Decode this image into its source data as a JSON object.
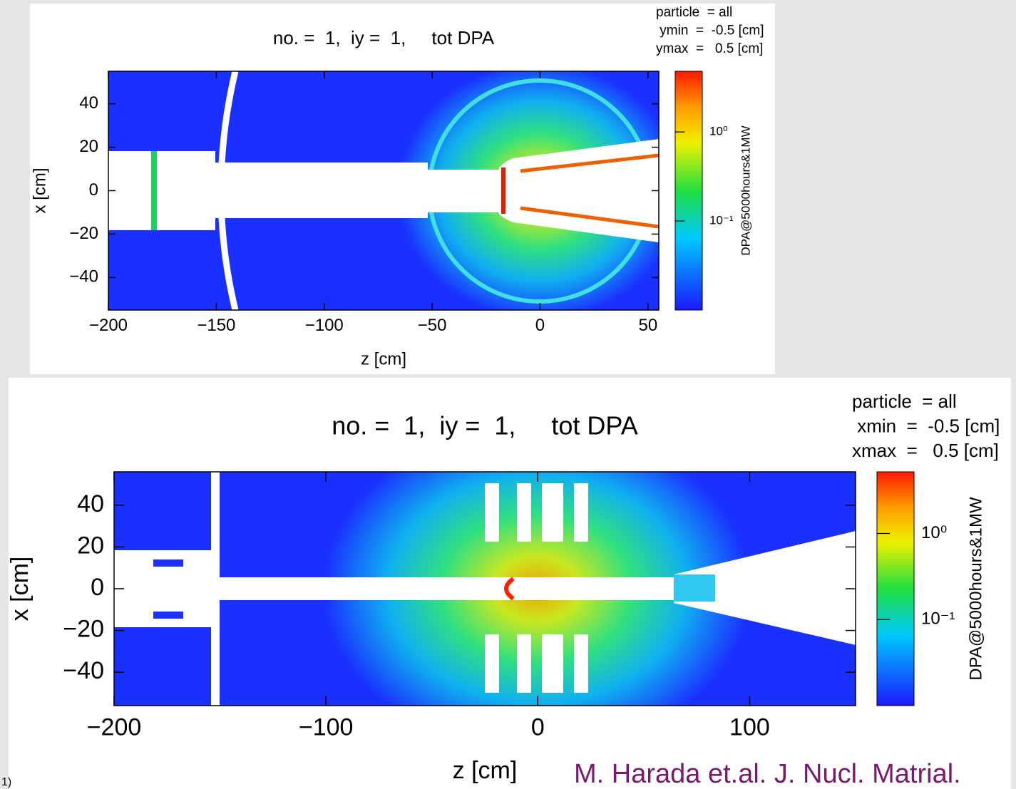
{
  "slide": {
    "footnote": "1)",
    "citation": "M. Harada et.al. J. Nucl. Matrial."
  },
  "chart_data": [
    {
      "type": "heatmap",
      "title": "no. =  1,  iy =  1,     tot DPA",
      "legend_text": [
        "particle  = all",
        " ymin  =  -0.5 [cm]",
        "ymax  =   0.5 [cm]"
      ],
      "xlabel": "z [cm]",
      "ylabel": "x [cm]",
      "colorbar_label": "DPA@5000hours&1MW",
      "xlim": [
        -200,
        55
      ],
      "xticks": [
        {
          "value": -200,
          "label": "−200"
        },
        {
          "value": -150,
          "label": "−150"
        },
        {
          "value": -100,
          "label": "−100"
        },
        {
          "value": -50,
          "label": "−50"
        },
        0,
        50
      ],
      "ylim": [
        -55,
        55
      ],
      "yticks": [
        {
          "value": -40,
          "label": "−40"
        },
        {
          "value": -20,
          "label": "−20"
        },
        0,
        20,
        40
      ],
      "zlim": [
        0.01,
        4.8
      ],
      "zscale": "log",
      "zticks": [
        {
          "value": 0.1,
          "label": "10⁻¹"
        },
        {
          "value": 1,
          "label": "10⁰"
        }
      ]
    },
    {
      "type": "heatmap",
      "title": "no. =  1,  iy =  1,     tot DPA",
      "legend_text": [
        "particle  = all",
        " xmin  =  -0.5 [cm]",
        "xmax  =   0.5 [cm]"
      ],
      "xlabel": "z [cm]",
      "ylabel": "x [cm]",
      "colorbar_label": "DPA@5000hours&1MW",
      "xlim": [
        -200,
        150
      ],
      "xticks": [
        {
          "value": -200,
          "label": "−200"
        },
        {
          "value": -100,
          "label": "−100"
        },
        0,
        100
      ],
      "ylim": [
        -56,
        56
      ],
      "yticks": [
        {
          "value": -40,
          "label": "−40"
        },
        {
          "value": -20,
          "label": "−20"
        },
        0,
        20,
        40
      ],
      "zlim": [
        0.01,
        5.2
      ],
      "zscale": "log",
      "zticks": [
        {
          "value": 0.1,
          "label": "10⁻¹"
        },
        {
          "value": 1,
          "label": "10⁰"
        }
      ]
    }
  ]
}
